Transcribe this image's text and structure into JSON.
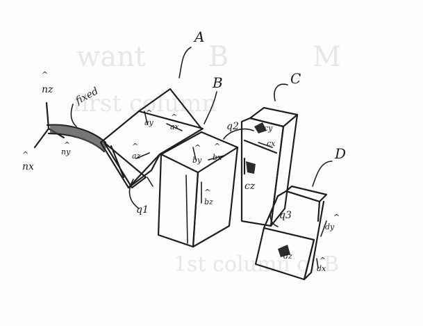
{
  "bodies": {
    "A": "A",
    "B": "B",
    "C": "C",
    "D": "D"
  },
  "ground": {
    "fixed_label": "fixed",
    "nz": "nz",
    "nx": "nx",
    "ny": "ny"
  },
  "body_A_vectors": {
    "ax": "ax",
    "ay": "ay",
    "az": "az"
  },
  "body_B_vectors": {
    "bx": "bx",
    "by": "by",
    "bz": "bz"
  },
  "body_C_vectors": {
    "cx": "cx",
    "cy": "cy",
    "cz": "cz"
  },
  "body_D_vectors": {
    "dx": "dx",
    "dy": "dy",
    "dz": "dz"
  },
  "joint_angles": {
    "q1": "q1",
    "q2": "q2",
    "q3": "q3"
  },
  "background_show_through": {
    "line1": "want",
    "line2": "B",
    "line3": "M",
    "line4": "first column",
    "line5": "1st column of B"
  }
}
